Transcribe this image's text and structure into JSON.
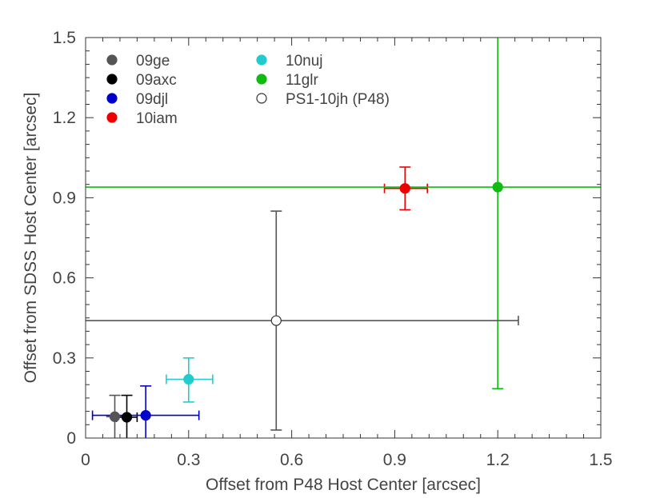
{
  "chart_data": {
    "type": "scatter",
    "title": "",
    "xlabel": "Offset from P48 Host Center [arcsec]",
    "ylabel": "Offset from SDSS Host Center [arcsec]",
    "xlim": [
      0,
      1.5
    ],
    "ylim": [
      0,
      1.5
    ],
    "x_ticks": [
      "0",
      "0.3",
      "0.6",
      "0.9",
      "1.2",
      "1.5"
    ],
    "y_ticks": [
      "0",
      "0.3",
      "0.6",
      "0.9",
      "1.2",
      "1.5"
    ],
    "x_tick_values": [
      0,
      0.3,
      0.6,
      0.9,
      1.2,
      1.5
    ],
    "y_tick_values": [
      0,
      0.3,
      0.6,
      0.9,
      1.2,
      1.5
    ],
    "legend_position": "top-left",
    "series": [
      {
        "name": "09ge",
        "color": "#555555",
        "filled": true,
        "x": 0.085,
        "y": 0.08,
        "xerr": [
          0.06,
          0.11
        ],
        "yerr": [
          0.0,
          0.16
        ],
        "xcap": false
      },
      {
        "name": "09axc",
        "color": "#000000",
        "filled": true,
        "x": 0.12,
        "y": 0.078,
        "xerr": [
          0.09,
          0.15
        ],
        "yerr": [
          0.0,
          0.16
        ],
        "xcap": true
      },
      {
        "name": "09djl",
        "color": "#0000cc",
        "filled": true,
        "x": 0.175,
        "y": 0.085,
        "xerr": [
          0.02,
          0.33
        ],
        "yerr": [
          0.0,
          0.195
        ],
        "xcap": true
      },
      {
        "name": "10iam",
        "color": "#ee0000",
        "filled": true,
        "x": 0.93,
        "y": 0.935,
        "xerr": [
          0.87,
          0.995
        ],
        "yerr": [
          0.855,
          1.015
        ],
        "xcap": true
      },
      {
        "name": "10nuj",
        "color": "#22cccc",
        "filled": true,
        "x": 0.3,
        "y": 0.22,
        "xerr": [
          0.235,
          0.37
        ],
        "yerr": [
          0.135,
          0.3
        ],
        "xcap": true
      },
      {
        "name": "11glr",
        "color": "#11bb11",
        "filled": true,
        "x": 1.2,
        "y": 0.94,
        "xerr": [
          0,
          1.5
        ],
        "yerr": [
          0.185,
          1.5
        ],
        "xcap": false
      },
      {
        "name": "PS1-10jh (P48)",
        "color": "#555555",
        "filled": false,
        "x": 0.555,
        "y": 0.44,
        "xerr": [
          0,
          1.26
        ],
        "yerr": [
          0.03,
          0.85
        ],
        "xcap": true
      }
    ]
  }
}
